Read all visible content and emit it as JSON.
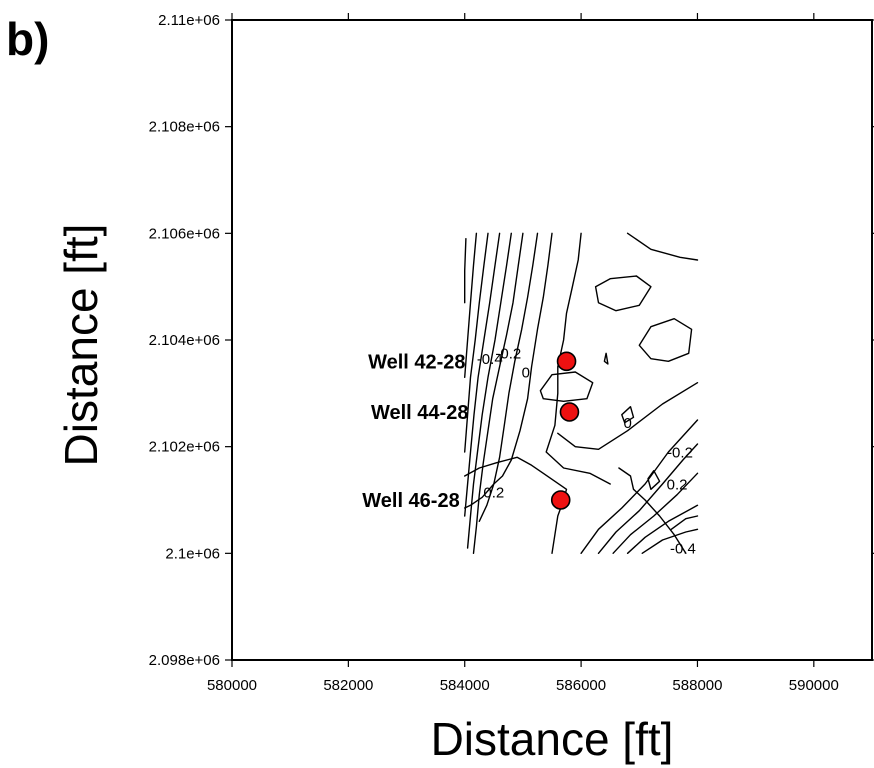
{
  "panel_label": "b)",
  "chart_data": {
    "type": "scatter",
    "title": "",
    "xlabel": "Distance [ft]",
    "ylabel": "Distance [ft]",
    "xlim": [
      580000,
      591000
    ],
    "ylim": [
      2098000,
      2110000
    ],
    "x_ticks": [
      580000,
      582000,
      584000,
      586000,
      588000,
      590000
    ],
    "x_tick_labels": [
      "580000",
      "582000",
      "584000",
      "586000",
      "588000",
      "590000"
    ],
    "y_ticks": [
      2098000,
      2100000,
      2102000,
      2104000,
      2106000,
      2108000,
      2110000
    ],
    "y_tick_labels": [
      "2.098e+06",
      "2.1e+06",
      "2.102e+06",
      "2.104e+06",
      "2.106e+06",
      "2.108e+06",
      "2.11e+06"
    ],
    "grid": false,
    "point_color": "#ee1111",
    "wells": [
      {
        "label": "Well 42-28",
        "x": 585750,
        "y": 2103600
      },
      {
        "label": "Well 44-28",
        "x": 585800,
        "y": 2102650
      },
      {
        "label": "Well 46-28",
        "x": 585650,
        "y": 2101000
      }
    ],
    "contour_region": {
      "xlim": [
        584000,
        588000
      ],
      "ylim": [
        2100000,
        2106000
      ]
    },
    "contour_lines": [
      [
        [
          584020,
          2105900
        ],
        [
          584000,
          2105300
        ],
        [
          584000,
          2104700
        ]
      ],
      [
        [
          584200,
          2106000
        ],
        [
          584150,
          2105400
        ],
        [
          584100,
          2104700
        ],
        [
          584050,
          2104000
        ],
        [
          584000,
          2103300
        ]
      ],
      [
        [
          584400,
          2106000
        ],
        [
          584330,
          2105400
        ],
        [
          584250,
          2104700
        ],
        [
          584180,
          2104000
        ],
        [
          584100,
          2103300
        ],
        [
          584050,
          2102600
        ],
        [
          584000,
          2101900
        ]
      ],
      [
        [
          584600,
          2106000
        ],
        [
          584520,
          2105400
        ],
        [
          584430,
          2104700
        ],
        [
          584330,
          2104000
        ],
        [
          584230,
          2103300
        ],
        [
          584160,
          2102600
        ],
        [
          584100,
          2101900
        ],
        [
          584050,
          2101300
        ],
        [
          584000,
          2100700
        ]
      ],
      [
        [
          584800,
          2106000
        ],
        [
          584720,
          2105400
        ],
        [
          584620,
          2104700
        ],
        [
          584520,
          2104000
        ],
        [
          584400,
          2103300
        ],
        [
          584300,
          2102600
        ],
        [
          584220,
          2101900
        ],
        [
          584150,
          2101300
        ],
        [
          584100,
          2100700
        ],
        [
          584050,
          2100100
        ]
      ],
      [
        [
          585000,
          2106000
        ],
        [
          584920,
          2105400
        ],
        [
          584830,
          2104700
        ],
        [
          584720,
          2104100
        ],
        [
          584600,
          2103500
        ],
        [
          584480,
          2102900
        ],
        [
          584400,
          2102300
        ],
        [
          584320,
          2101700
        ],
        [
          584250,
          2101100
        ],
        [
          584200,
          2100500
        ],
        [
          584150,
          2100000
        ]
      ],
      [
        [
          585250,
          2106000
        ],
        [
          585170,
          2105400
        ],
        [
          585080,
          2104800
        ],
        [
          584980,
          2104200
        ],
        [
          584860,
          2103600
        ],
        [
          584760,
          2103000
        ],
        [
          584680,
          2102400
        ],
        [
          584600,
          2101800
        ],
        [
          584500,
          2101300
        ],
        [
          584380,
          2100900
        ],
        [
          584250,
          2100600
        ]
      ],
      [
        [
          585500,
          2106000
        ],
        [
          585430,
          2105400
        ],
        [
          585350,
          2104800
        ],
        [
          585250,
          2104200
        ],
        [
          585150,
          2103500
        ],
        [
          585080,
          2102900
        ],
        [
          584950,
          2102300
        ],
        [
          584800,
          2101750
        ],
        [
          584650,
          2101450
        ],
        [
          584500,
          2101300
        ],
        [
          584300,
          2101050
        ],
        [
          584100,
          2100900
        ],
        [
          584000,
          2100850
        ]
      ],
      [
        [
          584000,
          2101450
        ],
        [
          584250,
          2101600
        ],
        [
          584550,
          2101700
        ],
        [
          584900,
          2101800
        ],
        [
          585150,
          2101650
        ],
        [
          585350,
          2101500
        ],
        [
          585550,
          2101350
        ],
        [
          585750,
          2101200
        ],
        [
          585700,
          2101000
        ],
        [
          585600,
          2100700
        ],
        [
          585550,
          2100350
        ],
        [
          585500,
          2100000
        ]
      ],
      [
        [
          586000,
          2106000
        ],
        [
          585950,
          2105500
        ],
        [
          585850,
          2105000
        ],
        [
          585750,
          2104500
        ],
        [
          585700,
          2104000
        ],
        [
          585600,
          2103500
        ],
        [
          585600,
          2103000
        ],
        [
          585550,
          2102400
        ],
        [
          585400,
          2101900
        ],
        [
          585700,
          2101600
        ],
        [
          586150,
          2101500
        ],
        [
          586500,
          2101300
        ]
      ],
      [
        [
          586250,
          2105000
        ],
        [
          586500,
          2105150
        ],
        [
          586950,
          2105200
        ],
        [
          587200,
          2105000
        ],
        [
          587000,
          2104650
        ],
        [
          586600,
          2104550
        ],
        [
          586300,
          2104700
        ],
        [
          586250,
          2105000
        ]
      ],
      [
        [
          587000,
          2103900
        ],
        [
          587200,
          2104250
        ],
        [
          587600,
          2104400
        ],
        [
          587900,
          2104200
        ],
        [
          587850,
          2103750
        ],
        [
          587500,
          2103600
        ],
        [
          587200,
          2103650
        ],
        [
          587000,
          2103900
        ]
      ],
      [
        [
          585300,
          2103050
        ],
        [
          585500,
          2103350
        ],
        [
          585900,
          2103400
        ],
        [
          586200,
          2103200
        ],
        [
          586100,
          2102900
        ],
        [
          585700,
          2102850
        ],
        [
          585350,
          2102900
        ],
        [
          585300,
          2103050
        ]
      ],
      [
        [
          586700,
          2102600
        ],
        [
          586850,
          2102750
        ],
        [
          586900,
          2102550
        ],
        [
          586750,
          2102450
        ],
        [
          586700,
          2102600
        ]
      ],
      [
        [
          586400,
          2103600
        ],
        [
          586430,
          2103750
        ],
        [
          586460,
          2103550
        ],
        [
          586400,
          2103600
        ]
      ],
      [
        [
          586800,
          2106000
        ],
        [
          587200,
          2105700
        ],
        [
          587700,
          2105550
        ],
        [
          588000,
          2105500
        ]
      ],
      [
        [
          585600,
          2102250
        ],
        [
          585900,
          2102000
        ],
        [
          586300,
          2101950
        ],
        [
          586800,
          2102300
        ],
        [
          587400,
          2102800
        ],
        [
          588000,
          2103200
        ]
      ],
      [
        [
          586000,
          2100000
        ],
        [
          586300,
          2100450
        ],
        [
          586700,
          2100850
        ],
        [
          587100,
          2101300
        ],
        [
          587500,
          2101900
        ],
        [
          588000,
          2102500
        ]
      ],
      [
        [
          586300,
          2100000
        ],
        [
          586600,
          2100400
        ],
        [
          587000,
          2100800
        ],
        [
          587400,
          2101300
        ],
        [
          587750,
          2101750
        ],
        [
          588000,
          2102050
        ]
      ],
      [
        [
          586550,
          2100000
        ],
        [
          586850,
          2100350
        ],
        [
          587250,
          2100700
        ],
        [
          587650,
          2101100
        ],
        [
          588000,
          2101500
        ]
      ],
      [
        [
          586800,
          2100000
        ],
        [
          587100,
          2100300
        ],
        [
          587500,
          2100600
        ],
        [
          588000,
          2100900
        ]
      ],
      [
        [
          587050,
          2100000
        ],
        [
          587400,
          2100250
        ],
        [
          587800,
          2100400
        ],
        [
          588000,
          2100450
        ]
      ],
      [
        [
          586650,
          2101600
        ],
        [
          586850,
          2101450
        ],
        [
          586900,
          2101200
        ],
        [
          587100,
          2101000
        ],
        [
          587350,
          2100700
        ],
        [
          587600,
          2100350
        ],
        [
          587800,
          2100000
        ]
      ],
      [
        [
          587200,
          2101200
        ],
        [
          587350,
          2101350
        ],
        [
          587250,
          2101550
        ],
        [
          587150,
          2101400
        ],
        [
          587200,
          2101200
        ]
      ],
      [
        [
          587550,
          2100450
        ],
        [
          587800,
          2100650
        ],
        [
          588000,
          2100700
        ]
      ]
    ],
    "contour_labels": [
      {
        "text": "-0.4",
        "x": 584430,
        "y": 2103550
      },
      {
        "text": "-0.2",
        "x": 584750,
        "y": 2103650
      },
      {
        "text": "0",
        "x": 585050,
        "y": 2103300
      },
      {
        "text": "0",
        "x": 586800,
        "y": 2102350
      },
      {
        "text": "0.2",
        "x": 584500,
        "y": 2101050
      },
      {
        "text": "0.2",
        "x": 587650,
        "y": 2101200
      },
      {
        "text": "-0.2",
        "x": 587700,
        "y": 2101800
      },
      {
        "text": "-0.4",
        "x": 587750,
        "y": 2100000
      }
    ]
  }
}
